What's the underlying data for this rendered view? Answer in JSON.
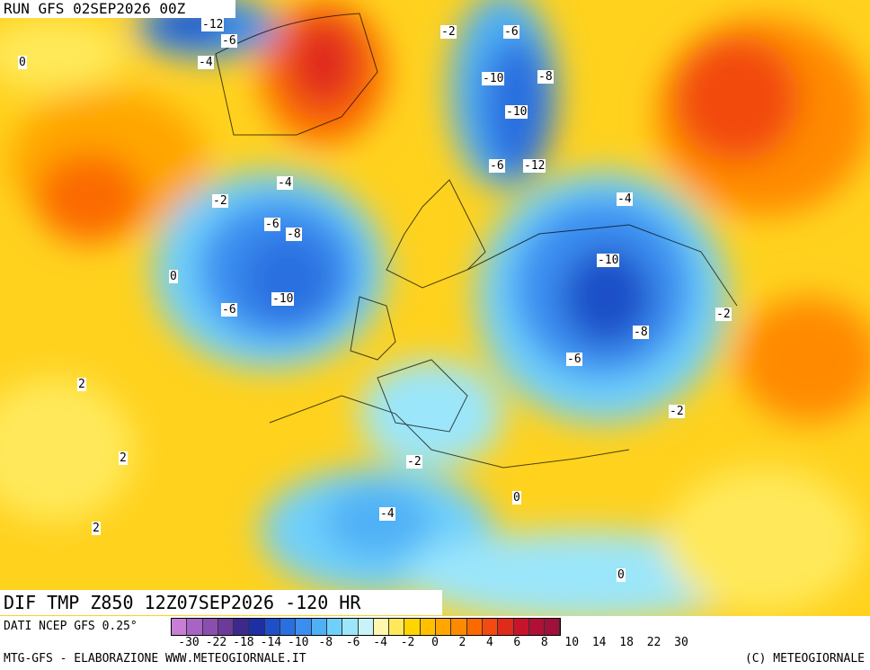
{
  "header": {
    "run_title": "RUN GFS 02SEP2026 00Z"
  },
  "map": {
    "caption": "DIF TMP Z850 12Z07SEP2026 -120 HR",
    "labels": [
      "-12",
      "-8",
      "-6",
      "-6",
      "-6",
      "-4",
      "-4",
      "-4",
      "-2",
      "-2",
      "-2",
      "-2",
      "-10",
      "-10",
      "-10",
      "-10",
      "-12",
      "-8",
      "-8",
      "-6",
      "-6",
      "-6",
      "0",
      "0",
      "0",
      "2",
      "2",
      "2",
      "-2",
      "-4",
      "0"
    ]
  },
  "footer": {
    "source": "DATI NCEP GFS 0.25°",
    "credit_left": "MTG-GFS - ELABORAZIONE WWW.METEOGIORNALE.IT",
    "credit_right": "(C) METEOGIORNALE"
  },
  "legend": {
    "colors": [
      "#c77fd6",
      "#a864c4",
      "#8a4fae",
      "#6d3a9a",
      "#3b2a8c",
      "#1e2fa5",
      "#1f4fc8",
      "#2a6fe0",
      "#3a8ef0",
      "#4fb0f6",
      "#6fd0fb",
      "#9be6fb",
      "#c8f3f8",
      "#fff6b0",
      "#ffe95a",
      "#ffd400",
      "#ffc000",
      "#ffa600",
      "#ff8a00",
      "#fb6a00",
      "#f24a10",
      "#e02a1a",
      "#c8142a",
      "#b01038",
      "#a0103a"
    ],
    "ticks": [
      "-30",
      "-22",
      "-18",
      "-14",
      "-10",
      "-8",
      "-6",
      "-4",
      "-2",
      "0",
      "2",
      "4",
      "6",
      "8",
      "10",
      "14",
      "18",
      "22",
      "30"
    ]
  }
}
